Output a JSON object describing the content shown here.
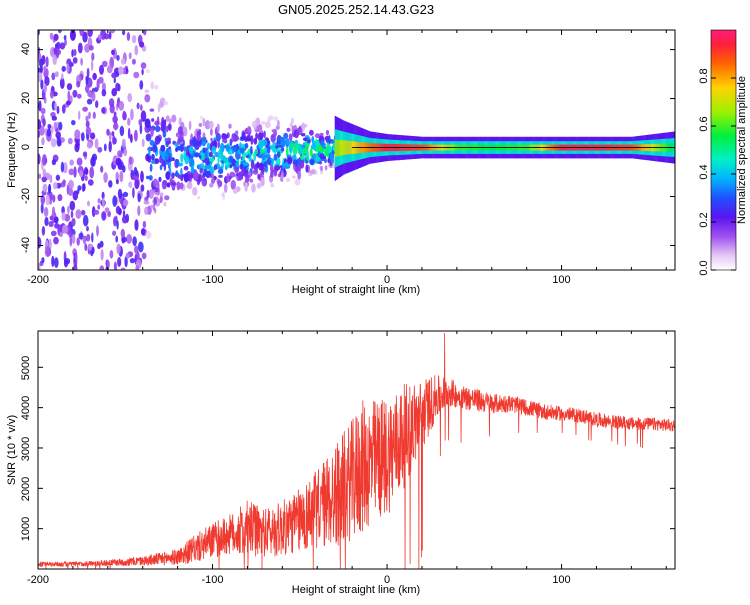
{
  "title": "GN05.2025.252.14.43.G23",
  "colors": {
    "snr_line": "#f03a30",
    "axis": "#000000",
    "background": "#ffffff"
  },
  "chart_data": [
    {
      "type": "heatmap",
      "title": "GN05.2025.252.14.43.G23",
      "xlabel": "Height of straight line (km)",
      "ylabel": "Frequency (Hz)",
      "xlim": [
        -200,
        165
      ],
      "ylim": [
        -50,
        48
      ],
      "x_ticks": [
        -200,
        -100,
        0,
        100
      ],
      "x_tick_labels": [
        "-200",
        "-100",
        "0",
        "100"
      ],
      "y_ticks": [
        -40,
        -20,
        0,
        20,
        40
      ],
      "y_tick_labels": [
        "-40",
        "-20",
        "0",
        "20",
        "40"
      ],
      "colorbar": {
        "label": "Normalized spectral amplitude",
        "range": [
          0.0,
          1.0
        ],
        "ticks": [
          0.0,
          0.2,
          0.4,
          0.6,
          0.8
        ],
        "tick_labels": [
          "0.0",
          "0.2",
          "0.4",
          "0.6",
          "0.8"
        ]
      },
      "spectral_ridge": {
        "x": [
          -200,
          -160,
          -120,
          -100,
          -80,
          -60,
          -40,
          -25,
          -10,
          0,
          20,
          40,
          60,
          80,
          100,
          120,
          140,
          165
        ],
        "center_hz": [
          0,
          0,
          -4,
          -4,
          -3,
          -2,
          -1,
          0,
          0,
          0,
          0,
          0,
          0,
          0,
          0,
          0,
          0,
          0
        ],
        "spread_hz": [
          48,
          48,
          14,
          13,
          12,
          11,
          8,
          5,
          3,
          2.5,
          2,
          2,
          2,
          2,
          2,
          2,
          2,
          3
        ],
        "peak_amplitude": [
          0.25,
          0.25,
          0.45,
          0.5,
          0.5,
          0.55,
          0.6,
          0.7,
          0.85,
          0.95,
          0.9,
          0.6,
          0.55,
          0.6,
          0.95,
          0.95,
          0.9,
          0.5
        ]
      }
    },
    {
      "type": "line",
      "title": "",
      "xlabel": "Height of straight line (km)",
      "ylabel": "SNR (10 * v/v)",
      "xlim": [
        -200,
        165
      ],
      "ylim": [
        0,
        5900
      ],
      "x_ticks": [
        -200,
        -100,
        0,
        100
      ],
      "x_tick_labels": [
        "-200",
        "-100",
        "0",
        "100"
      ],
      "y_ticks": [
        1000,
        2000,
        3000,
        4000,
        5000
      ],
      "y_tick_labels": [
        "1000",
        "2000",
        "3000",
        "4000",
        "5000"
      ],
      "series": [
        {
          "name": "SNR",
          "envelope_x": [
            -200,
            -180,
            -160,
            -140,
            -120,
            -110,
            -100,
            -90,
            -80,
            -70,
            -60,
            -50,
            -40,
            -30,
            -20,
            -15,
            -10,
            0,
            10,
            20,
            25,
            30,
            35,
            40,
            50,
            60,
            70,
            80,
            90,
            100,
            110,
            120,
            130,
            140,
            150,
            165
          ],
          "mean": [
            120,
            120,
            150,
            200,
            300,
            500,
            700,
            850,
            1000,
            900,
            1000,
            1200,
            1500,
            1800,
            2200,
            2500,
            2600,
            2800,
            3300,
            3800,
            4100,
            4300,
            4400,
            4300,
            4200,
            4100,
            4100,
            4000,
            3900,
            3850,
            3800,
            3700,
            3650,
            3600,
            3600,
            3550
          ],
          "amplitude": [
            60,
            60,
            80,
            120,
            200,
            350,
            450,
            500,
            700,
            600,
            700,
            800,
            1000,
            1300,
            1500,
            1700,
            1600,
            1500,
            1300,
            900,
            700,
            500,
            400,
            300,
            300,
            250,
            220,
            200,
            200,
            180,
            180,
            180,
            170,
            160,
            160,
            160
          ],
          "max_value": 5850,
          "max_at_x": 33
        }
      ]
    }
  ]
}
